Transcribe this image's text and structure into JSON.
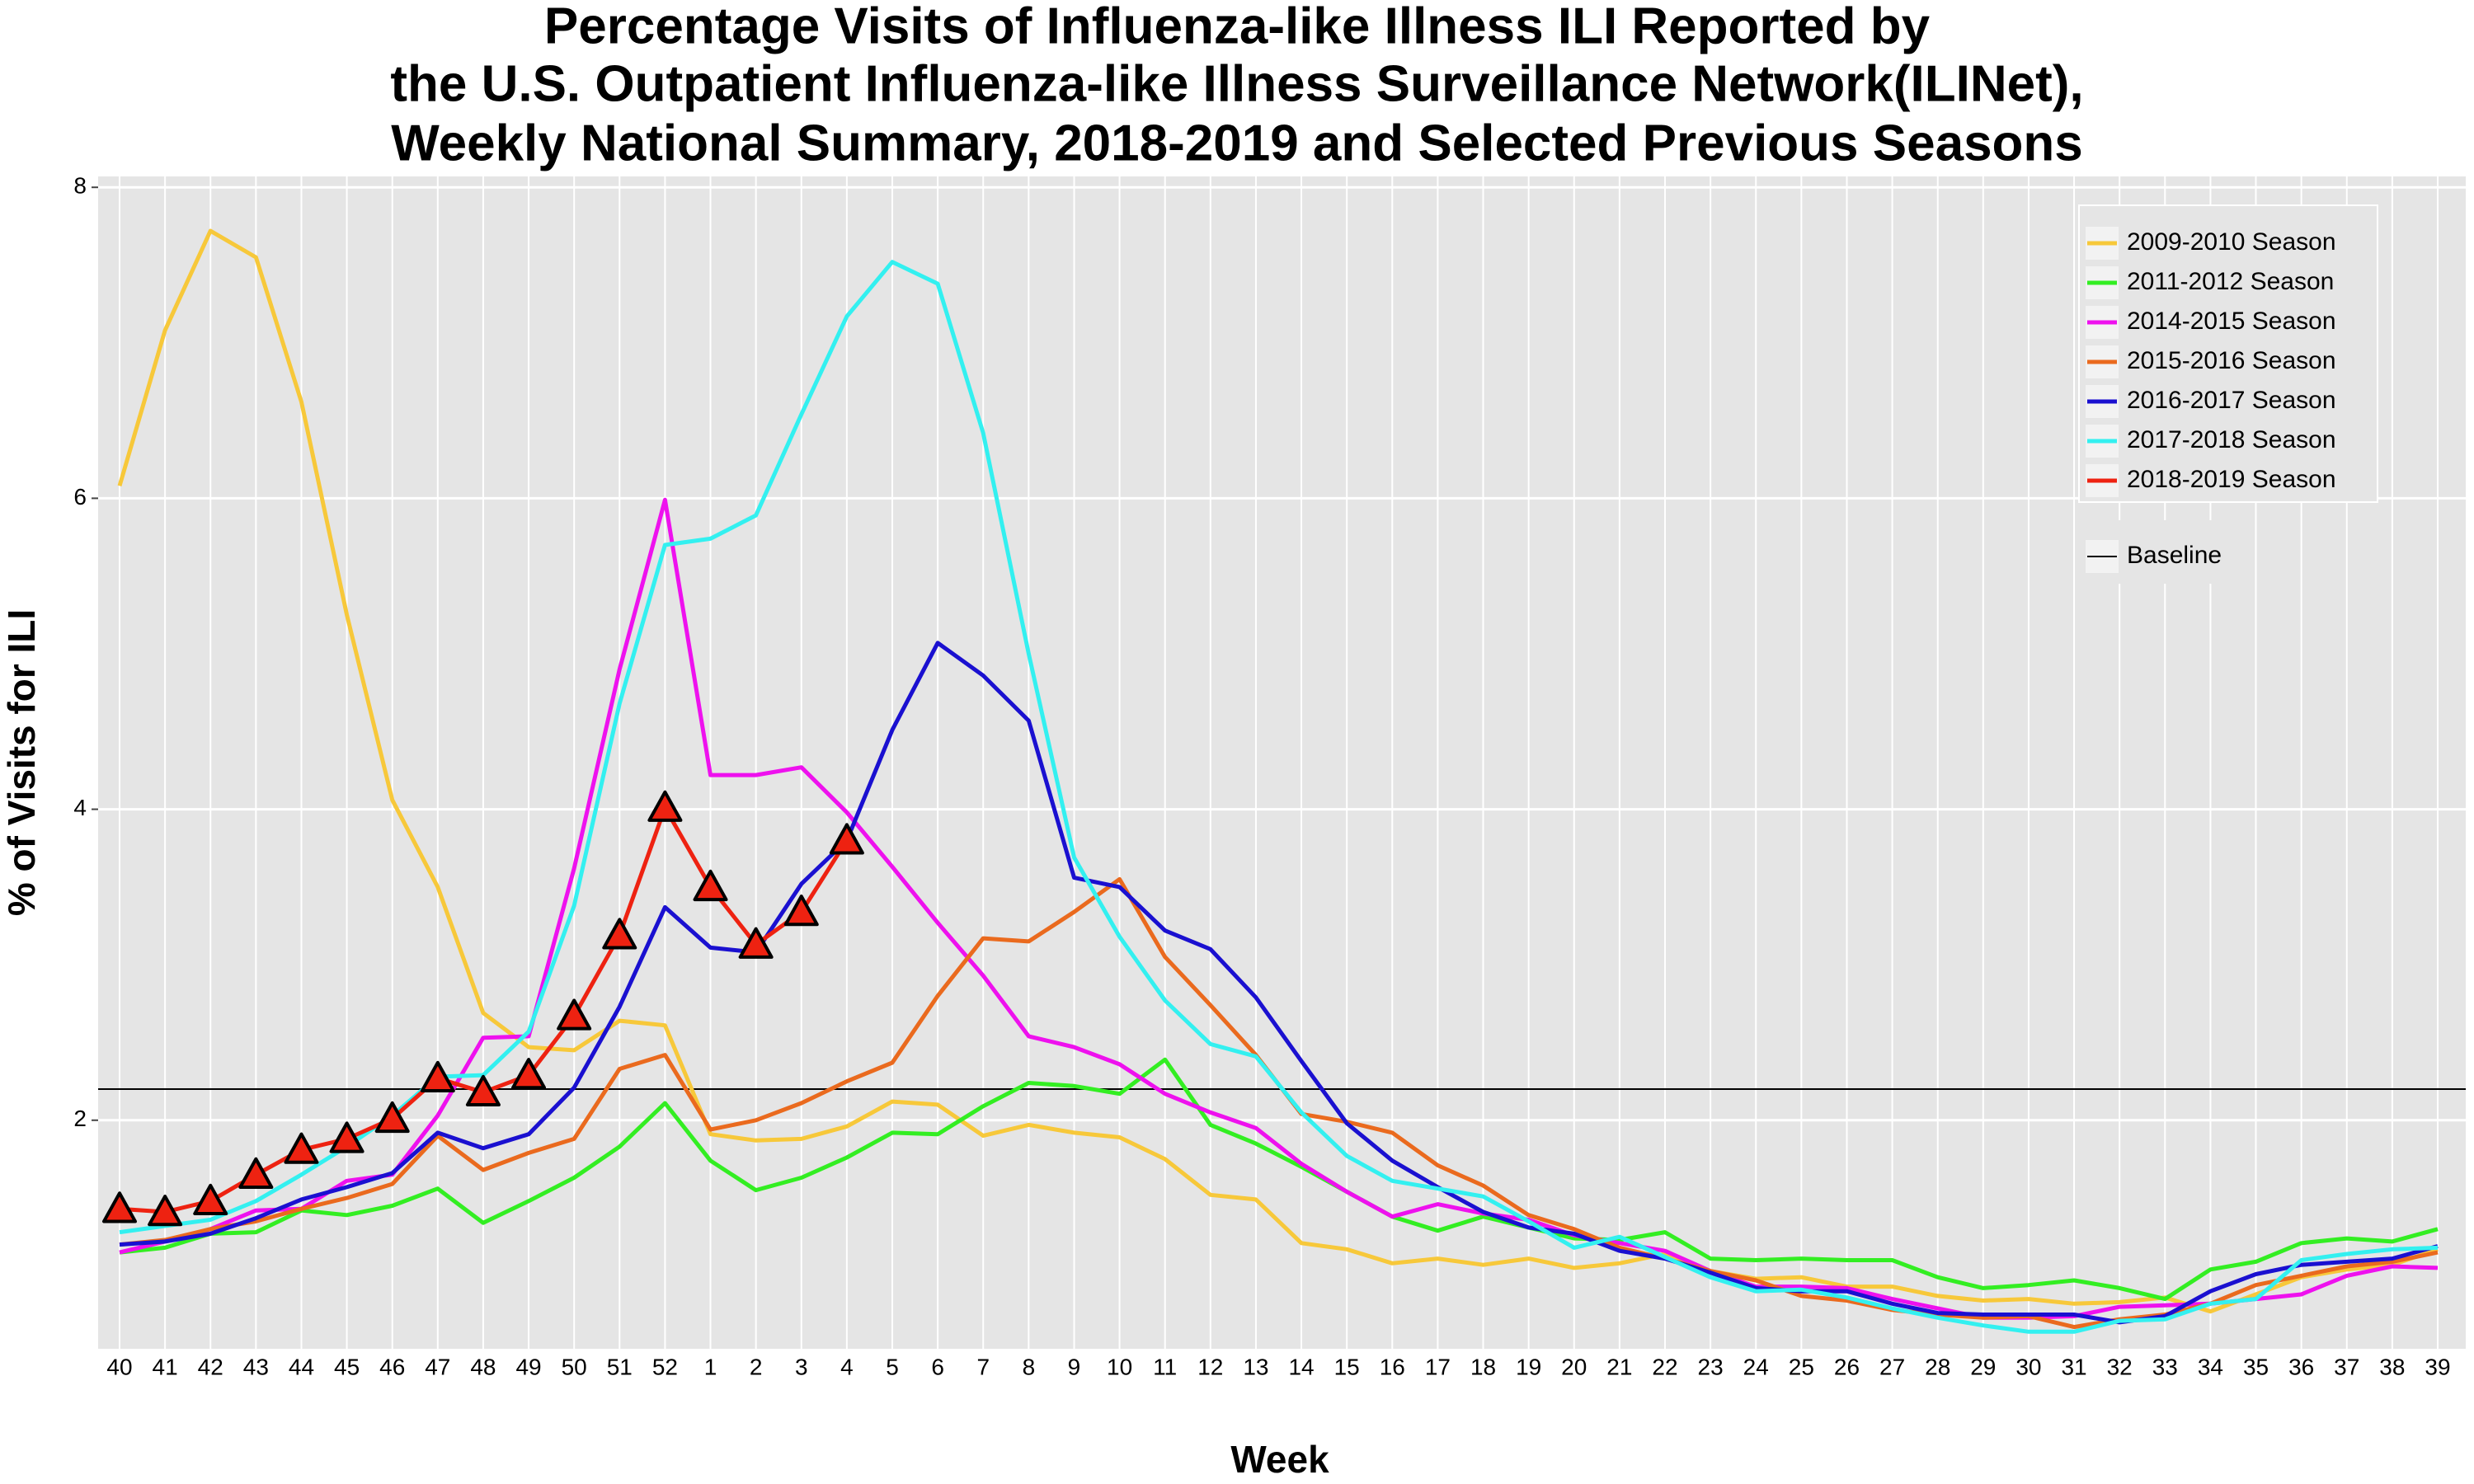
{
  "chart_data": {
    "type": "line",
    "title": [
      "Percentage Visits of Influenza-like Illness ILI Reported by",
      "the U.S. Outpatient Influenza-like Illness Surveillance Network(ILINet),",
      "Weekly National Summary, 2018-2019 and Selected Previous Seasons"
    ],
    "x_label": "Week",
    "y_label": "% of Visits for ILI",
    "categories": [
      "40",
      "41",
      "42",
      "43",
      "44",
      "45",
      "46",
      "47",
      "48",
      "49",
      "50",
      "51",
      "52",
      "1",
      "2",
      "3",
      "4",
      "5",
      "6",
      "7",
      "8",
      "9",
      "10",
      "11",
      "12",
      "13",
      "14",
      "15",
      "16",
      "17",
      "18",
      "19",
      "20",
      "21",
      "22",
      "23",
      "24",
      "25",
      "26",
      "27",
      "28",
      "29",
      "30",
      "31",
      "32",
      "33",
      "34",
      "35",
      "36",
      "37",
      "38",
      "39"
    ],
    "ylim": [
      0.53,
      8.07
    ],
    "yticks": [
      2,
      4,
      6,
      8
    ],
    "grid": true,
    "legend_position": "top-right",
    "series": [
      {
        "name": "2009-2010 Season",
        "color": "#f7c83a",
        "values": [
          6.08,
          7.08,
          7.72,
          7.55,
          6.62,
          5.25,
          4.06,
          3.5,
          2.69,
          2.47,
          2.45,
          2.64,
          2.61,
          1.91,
          1.87,
          1.88,
          1.96,
          2.12,
          2.1,
          1.9,
          1.97,
          1.92,
          1.89,
          1.75,
          1.52,
          1.49,
          1.21,
          1.17,
          1.08,
          1.11,
          1.07,
          1.11,
          1.05,
          1.08,
          1.14,
          1.03,
          0.98,
          0.99,
          0.93,
          0.93,
          0.87,
          0.84,
          0.85,
          0.82,
          0.83,
          0.86,
          0.77,
          0.88,
          0.99,
          1.04,
          1.07,
          1.17
        ]
      },
      {
        "name": "2011-2012 Season",
        "color": "#33ee22",
        "values": [
          1.15,
          1.18,
          1.27,
          1.28,
          1.42,
          1.39,
          1.45,
          1.56,
          1.34,
          1.48,
          1.63,
          1.83,
          2.11,
          1.74,
          1.55,
          1.63,
          1.76,
          1.92,
          1.91,
          2.09,
          2.24,
          2.22,
          2.17,
          2.39,
          1.97,
          1.85,
          1.7,
          1.54,
          1.38,
          1.29,
          1.38,
          1.31,
          1.24,
          1.23,
          1.28,
          1.11,
          1.1,
          1.11,
          1.1,
          1.1,
          0.99,
          0.92,
          0.94,
          0.97,
          0.92,
          0.85,
          1.04,
          1.09,
          1.21,
          1.24,
          1.22,
          1.3
        ]
      },
      {
        "name": "2014-2015 Season",
        "color": "#ee11ee",
        "values": [
          1.15,
          1.22,
          1.3,
          1.42,
          1.43,
          1.61,
          1.65,
          2.03,
          2.53,
          2.54,
          3.62,
          4.9,
          5.99,
          4.22,
          4.22,
          4.27,
          3.98,
          3.63,
          3.27,
          2.93,
          2.54,
          2.47,
          2.36,
          2.17,
          2.05,
          1.95,
          1.72,
          1.54,
          1.38,
          1.46,
          1.4,
          1.36,
          1.26,
          1.21,
          1.16,
          1.03,
          0.93,
          0.93,
          0.92,
          0.85,
          0.79,
          0.73,
          0.73,
          0.74,
          0.8,
          0.81,
          0.82,
          0.85,
          0.88,
          1.0,
          1.06,
          1.05
        ]
      },
      {
        "name": "2015-2016 Season",
        "color": "#ea6a1e",
        "values": [
          1.2,
          1.23,
          1.3,
          1.35,
          1.43,
          1.5,
          1.59,
          1.9,
          1.68,
          1.79,
          1.88,
          2.33,
          2.42,
          1.94,
          2.0,
          2.11,
          2.25,
          2.37,
          2.8,
          3.17,
          3.15,
          3.34,
          3.55,
          3.05,
          2.74,
          2.42,
          2.04,
          1.99,
          1.92,
          1.71,
          1.58,
          1.39,
          1.3,
          1.18,
          1.11,
          1.03,
          0.97,
          0.87,
          0.84,
          0.78,
          0.75,
          0.73,
          0.74,
          0.67,
          0.72,
          0.75,
          0.82,
          0.94,
          1.0,
          1.06,
          1.09,
          1.15
        ]
      },
      {
        "name": "2016-2017 Season",
        "color": "#1a10d0",
        "values": [
          1.2,
          1.22,
          1.27,
          1.37,
          1.49,
          1.57,
          1.66,
          1.92,
          1.82,
          1.91,
          2.21,
          2.73,
          3.37,
          3.11,
          3.08,
          3.52,
          3.8,
          4.51,
          5.07,
          4.86,
          4.57,
          3.56,
          3.5,
          3.22,
          3.1,
          2.79,
          2.38,
          1.98,
          1.74,
          1.57,
          1.41,
          1.31,
          1.27,
          1.16,
          1.11,
          1.02,
          0.92,
          0.9,
          0.9,
          0.82,
          0.76,
          0.75,
          0.75,
          0.75,
          0.7,
          0.74,
          0.9,
          1.01,
          1.07,
          1.09,
          1.11,
          1.19
        ]
      },
      {
        "name": "2017-2018 Season",
        "color": "#33f0f0",
        "values": [
          1.28,
          1.32,
          1.36,
          1.48,
          1.65,
          1.83,
          2.03,
          2.28,
          2.29,
          2.57,
          3.38,
          4.68,
          5.7,
          5.74,
          5.89,
          6.54,
          7.17,
          7.52,
          7.38,
          6.42,
          5.0,
          3.69,
          3.18,
          2.77,
          2.49,
          2.41,
          2.05,
          1.77,
          1.61,
          1.56,
          1.51,
          1.35,
          1.18,
          1.25,
          1.12,
          0.99,
          0.9,
          0.91,
          0.86,
          0.79,
          0.73,
          0.68,
          0.64,
          0.64,
          0.71,
          0.72,
          0.82,
          0.85,
          1.1,
          1.14,
          1.17,
          1.18
        ]
      },
      {
        "name": "2018-2019 Season",
        "color": "#ee2211",
        "markers": true,
        "values": [
          1.43,
          1.41,
          1.48,
          1.65,
          1.81,
          1.88,
          2.01,
          2.27,
          2.18,
          2.29,
          2.67,
          3.19,
          4.01,
          3.5,
          3.13,
          3.34,
          3.8,
          null,
          null,
          null,
          null,
          null,
          null,
          null,
          null,
          null,
          null,
          null,
          null,
          null,
          null,
          null,
          null,
          null,
          null,
          null,
          null,
          null,
          null,
          null,
          null,
          null,
          null,
          null,
          null,
          null,
          null,
          null,
          null,
          null,
          null,
          null
        ]
      }
    ],
    "baseline": {
      "name": "Baseline",
      "value": 2.2,
      "color": "#000000"
    }
  }
}
